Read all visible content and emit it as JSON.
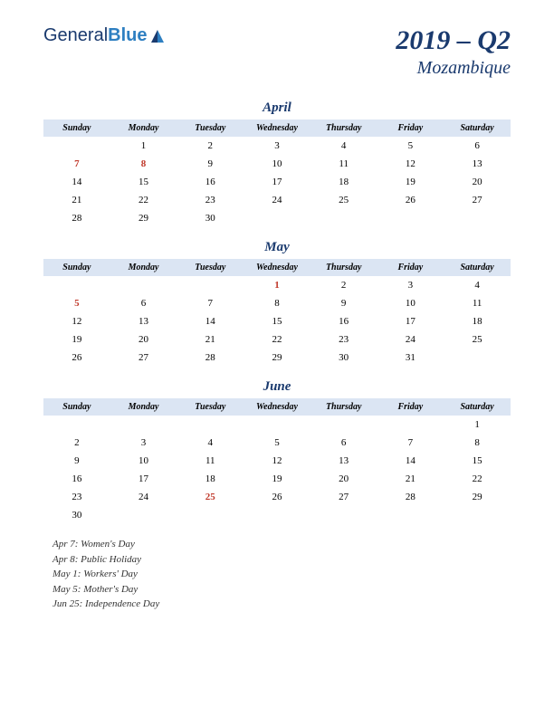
{
  "logo": {
    "part1": "General",
    "part2": "Blue"
  },
  "title": {
    "main": "2019 – Q2",
    "sub": "Mozambique"
  },
  "dayHeaders": [
    "Sunday",
    "Monday",
    "Tuesday",
    "Wednesday",
    "Thursday",
    "Friday",
    "Saturday"
  ],
  "colors": {
    "headerBg": "#dbe5f3",
    "brandDark": "#1a3a6e",
    "brandLight": "#2e7fc1",
    "holiday": "#c0392b",
    "text": "#000000",
    "background": "#ffffff"
  },
  "months": [
    {
      "name": "April",
      "weeks": [
        [
          "",
          "1",
          "2",
          "3",
          "4",
          "5",
          "6"
        ],
        [
          "7",
          "8",
          "9",
          "10",
          "11",
          "12",
          "13"
        ],
        [
          "14",
          "15",
          "16",
          "17",
          "18",
          "19",
          "20"
        ],
        [
          "21",
          "22",
          "23",
          "24",
          "25",
          "26",
          "27"
        ],
        [
          "28",
          "29",
          "30",
          "",
          "",
          "",
          ""
        ]
      ],
      "holidays": [
        "7",
        "8"
      ]
    },
    {
      "name": "May",
      "weeks": [
        [
          "",
          "",
          "",
          "1",
          "2",
          "3",
          "4"
        ],
        [
          "5",
          "6",
          "7",
          "8",
          "9",
          "10",
          "11"
        ],
        [
          "12",
          "13",
          "14",
          "15",
          "16",
          "17",
          "18"
        ],
        [
          "19",
          "20",
          "21",
          "22",
          "23",
          "24",
          "25"
        ],
        [
          "26",
          "27",
          "28",
          "29",
          "30",
          "31",
          ""
        ]
      ],
      "holidays": [
        "1",
        "5"
      ]
    },
    {
      "name": "June",
      "weeks": [
        [
          "",
          "",
          "",
          "",
          "",
          "",
          "1"
        ],
        [
          "2",
          "3",
          "4",
          "5",
          "6",
          "7",
          "8"
        ],
        [
          "9",
          "10",
          "11",
          "12",
          "13",
          "14",
          "15"
        ],
        [
          "16",
          "17",
          "18",
          "19",
          "20",
          "21",
          "22"
        ],
        [
          "23",
          "24",
          "25",
          "26",
          "27",
          "28",
          "29"
        ],
        [
          "30",
          "",
          "",
          "",
          "",
          "",
          ""
        ]
      ],
      "holidays": [
        "25"
      ]
    }
  ],
  "holidayList": [
    "Apr 7: Women's Day",
    "Apr 8: Public Holiday",
    "May 1: Workers' Day",
    "May 5: Mother's Day",
    "Jun 25: Independence Day"
  ]
}
